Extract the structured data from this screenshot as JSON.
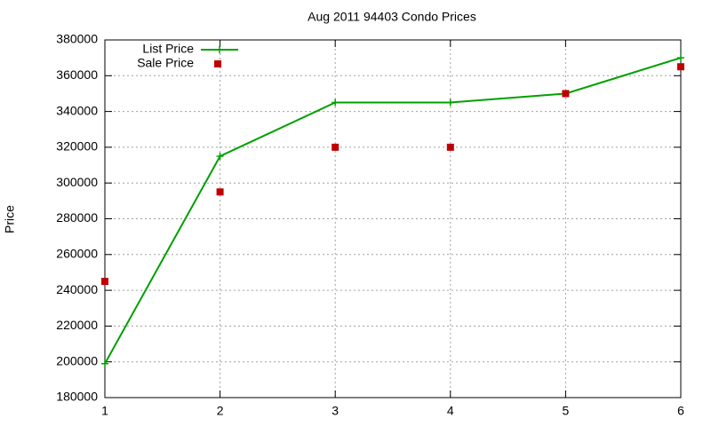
{
  "chart_data": {
    "type": "line",
    "title": "Aug 2011 94403 Condo Prices",
    "y_label": "Price",
    "x": [
      1,
      2,
      3,
      4,
      5,
      6
    ],
    "series": [
      {
        "name": "List Price",
        "color": "#00a000",
        "mode": "lines+points",
        "values": [
          199000,
          315000,
          345000,
          345000,
          350000,
          370000
        ]
      },
      {
        "name": "Sale Price",
        "color": "#c00000",
        "mode": "points",
        "values": [
          245000,
          295000,
          320000,
          320000,
          350000,
          365000
        ]
      }
    ],
    "xlim": [
      1,
      6
    ],
    "xticks": [
      1,
      2,
      3,
      4,
      5,
      6
    ],
    "ylim": [
      180000,
      380000
    ],
    "yticks": [
      180000,
      200000,
      220000,
      240000,
      260000,
      280000,
      300000,
      320000,
      340000,
      360000,
      380000
    ],
    "grid": true,
    "legend": "top-left"
  }
}
